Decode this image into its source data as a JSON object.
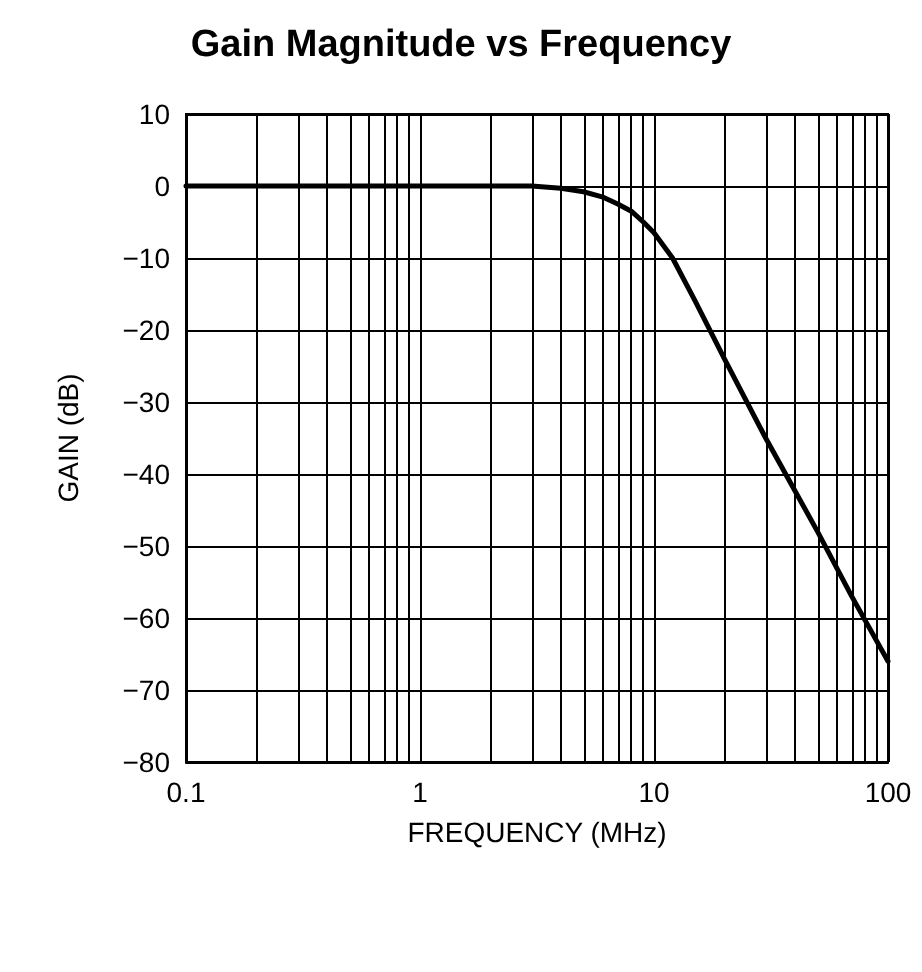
{
  "chart_data": {
    "type": "line",
    "title": "Gain Magnitude vs Frequency",
    "xlabel": "FREQUENCY (MHz)",
    "ylabel": "GAIN (dB)",
    "x": [
      0.1,
      0.5,
      1,
      2,
      3,
      4,
      5,
      6,
      7,
      8,
      9,
      10,
      12,
      15,
      20,
      30,
      50,
      70,
      100
    ],
    "series": [
      {
        "color": "#000000",
        "values": [
          0,
          0,
          0,
          0,
          0,
          -0.3,
          -0.8,
          -1.5,
          -2.5,
          -3.5,
          -5,
          -6.5,
          -10,
          -16,
          -24,
          -35,
          -48,
          -57,
          -66
        ]
      }
    ],
    "log": "x",
    "xlim": [
      0.1,
      100
    ],
    "ylim": [
      -80,
      10
    ],
    "xticks": [
      0.1,
      {
        "value": 0.2,
        "label": null
      },
      {
        "value": 0.3,
        "label": null
      },
      {
        "value": 0.4,
        "label": null
      },
      {
        "value": 0.5,
        "label": null
      },
      {
        "value": 0.6,
        "label": null
      },
      {
        "value": 0.7,
        "label": null
      },
      {
        "value": 0.8,
        "label": null
      },
      {
        "value": 0.9,
        "label": null
      },
      1,
      {
        "value": 2,
        "label": null
      },
      {
        "value": 3,
        "label": null
      },
      {
        "value": 4,
        "label": null
      },
      {
        "value": 5,
        "label": null
      },
      {
        "value": 6,
        "label": null
      },
      {
        "value": 7,
        "label": null
      },
      {
        "value": 8,
        "label": null
      },
      {
        "value": 9,
        "label": null
      },
      10,
      {
        "value": 20,
        "label": null
      },
      {
        "value": 30,
        "label": null
      },
      {
        "value": 40,
        "label": null
      },
      {
        "value": 50,
        "label": null
      },
      {
        "value": 60,
        "label": null
      },
      {
        "value": 70,
        "label": null
      },
      {
        "value": 80,
        "label": null
      },
      {
        "value": 90,
        "label": null
      },
      100
    ],
    "yticks": [
      -80,
      -70,
      -60,
      -50,
      -40,
      -30,
      -20,
      -10,
      0,
      10
    ],
    "grid": true,
    "marker": "none",
    "line_style": "solid"
  }
}
